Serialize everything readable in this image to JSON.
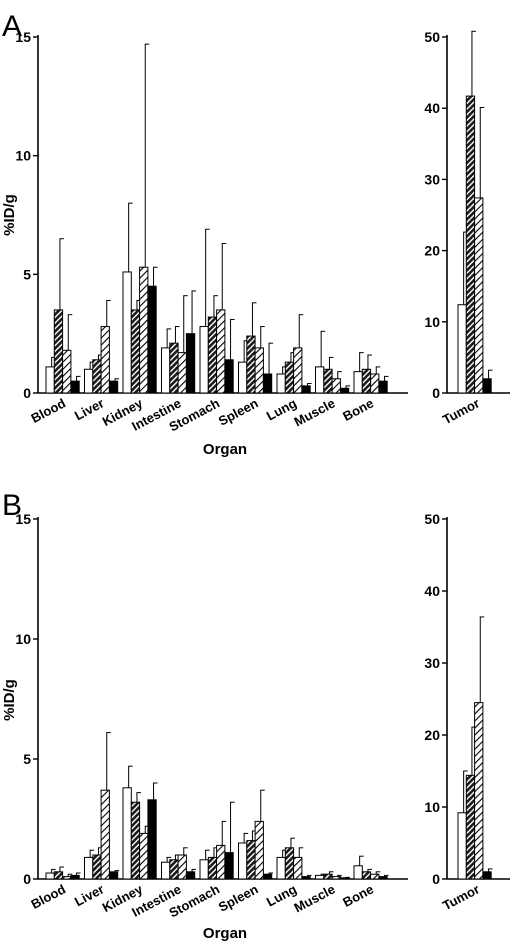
{
  "chart_data": [
    {
      "panel": "A",
      "type": "bar",
      "ylabel": "%ID/g",
      "xlabel": "Organ",
      "categories": [
        "Blood",
        "Liver",
        "Kidney",
        "Intestine",
        "Stomach",
        "Spleen",
        "Lung",
        "Muscle",
        "Bone"
      ],
      "ylim": [
        0,
        15
      ],
      "yticks": [
        0,
        5,
        10,
        15
      ],
      "series": [
        {
          "fill": "white",
          "values": [
            1.1,
            1.0,
            5.1,
            1.9,
            2.8,
            1.3,
            0.8,
            1.1,
            0.9
          ],
          "errors": [
            0.4,
            0.3,
            2.9,
            0.8,
            4.1,
            0.9,
            0.3,
            1.5,
            0.8
          ]
        },
        {
          "fill": "dense-hatch",
          "values": [
            3.5,
            1.4,
            3.5,
            2.1,
            3.2,
            2.4,
            1.3,
            1.0,
            1.0
          ],
          "errors": [
            3.0,
            0.2,
            0.4,
            0.7,
            0.9,
            1.4,
            0.4,
            0.5,
            0.6
          ]
        },
        {
          "fill": "light-hatch",
          "values": [
            1.8,
            2.8,
            5.3,
            1.7,
            3.5,
            1.9,
            1.9,
            0.6,
            0.8
          ],
          "errors": [
            1.5,
            1.1,
            9.4,
            2.4,
            2.8,
            0.9,
            1.4,
            0.3,
            0.3
          ]
        },
        {
          "fill": "black",
          "values": [
            0.5,
            0.5,
            4.5,
            2.5,
            1.4,
            0.8,
            0.3,
            0.2,
            0.5
          ],
          "errors": [
            0.2,
            0.1,
            0.8,
            1.8,
            1.7,
            1.3,
            0.1,
            0.1,
            0.2
          ]
        }
      ],
      "inset": {
        "categories": [
          "Tumor"
        ],
        "ylim": [
          0,
          50
        ],
        "yticks": [
          0,
          10,
          20,
          30,
          40,
          50
        ],
        "series_values": [
          12.4,
          41.7,
          27.4,
          2.0
        ],
        "series_errors": [
          10.2,
          9.1,
          12.7,
          1.2
        ]
      }
    },
    {
      "panel": "B",
      "type": "bar",
      "ylabel": "%ID/g",
      "xlabel": "Organ",
      "categories": [
        "Blood",
        "Liver",
        "Kidney",
        "Intestine",
        "Stomach",
        "Spleen",
        "Lung",
        "Muscle",
        "Bone"
      ],
      "ylim": [
        0,
        15
      ],
      "yticks": [
        0,
        5,
        10,
        15
      ],
      "series": [
        {
          "fill": "white",
          "values": [
            0.25,
            0.9,
            3.8,
            0.7,
            0.8,
            1.5,
            0.9,
            0.15,
            0.55
          ],
          "errors": [
            0.15,
            0.3,
            0.9,
            0.2,
            0.4,
            0.4,
            0.3,
            0.05,
            0.4
          ]
        },
        {
          "fill": "dense-hatch",
          "values": [
            0.3,
            1.0,
            3.2,
            0.8,
            0.9,
            1.6,
            1.3,
            0.2,
            0.3
          ],
          "errors": [
            0.2,
            0.3,
            0.4,
            0.2,
            0.4,
            0.4,
            0.4,
            0.1,
            0.1
          ]
        },
        {
          "fill": "light-hatch",
          "values": [
            0.1,
            3.7,
            1.9,
            1.0,
            1.4,
            2.4,
            0.9,
            0.1,
            0.2
          ],
          "errors": [
            0.1,
            2.4,
            0.3,
            0.3,
            1.0,
            1.3,
            0.4,
            0.05,
            0.1
          ]
        },
        {
          "fill": "black",
          "values": [
            0.15,
            0.3,
            3.3,
            0.3,
            1.1,
            0.2,
            0.1,
            0.05,
            0.1
          ],
          "errors": [
            0.1,
            0.05,
            0.7,
            0.1,
            2.1,
            0.05,
            0.05,
            0.02,
            0.05
          ]
        }
      ],
      "inset": {
        "categories": [
          "Tumor"
        ],
        "ylim": [
          0,
          50
        ],
        "yticks": [
          0,
          10,
          20,
          30,
          40,
          50
        ],
        "series_values": [
          9.2,
          14.4,
          24.5,
          1.0
        ],
        "series_errors": [
          5.8,
          6.7,
          11.9,
          0.4
        ]
      }
    }
  ]
}
